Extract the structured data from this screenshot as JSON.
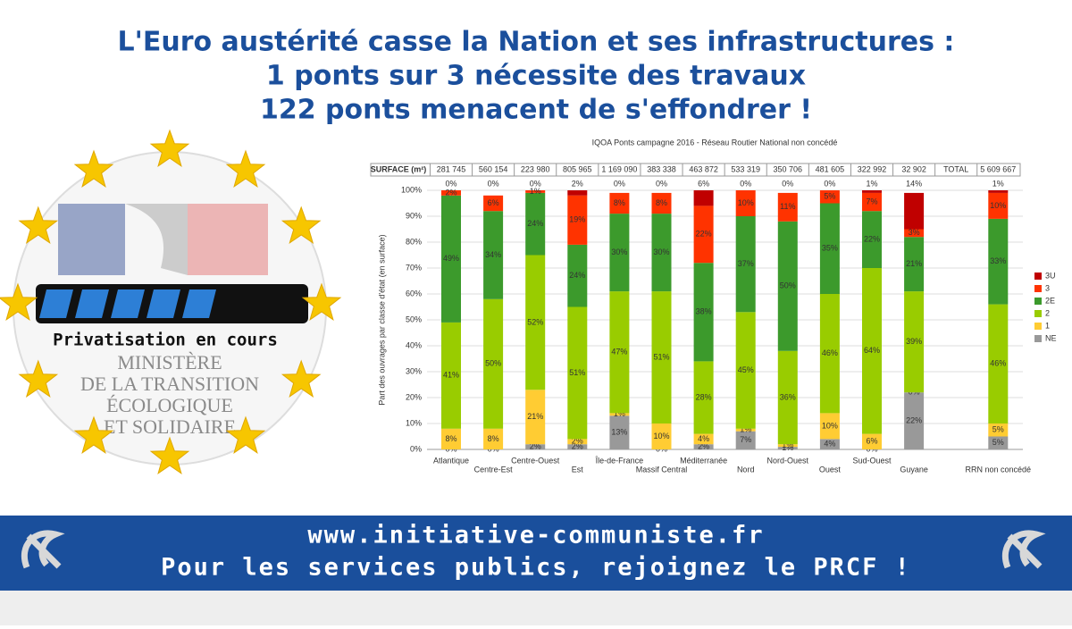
{
  "header": {
    "lines": [
      "L'Euro austérité casse la Nation et ses infrastructures :",
      "1 ponts sur 3 nécessite des travaux",
      "122 ponts menacent de s'effondrer !"
    ]
  },
  "logo": {
    "badge": "Privatisation en cours",
    "ministry": [
      "MINISTÈRE",
      "DE LA TRANSITION",
      "ÉCOLOGIQUE",
      "ET SOLIDAIRE"
    ]
  },
  "surface_table": {
    "header": "SURFACE (m²)",
    "cells": [
      "281 745",
      "560 154",
      "223 980",
      "805 965",
      "1 169 090",
      "383 338",
      "463 872",
      "533 319",
      "350 706",
      "481 605",
      "322 992",
      "32 902",
      "TOTAL",
      "5 609 667"
    ]
  },
  "chart_data": {
    "type": "stacked_bar",
    "title": "IQOA Ponts campagne 2016 - Réseau Routier National non concédé",
    "y_label": "Part des ouvrages par classe d'état (en surface)",
    "categories": [
      "Atlantique",
      "Centre-Est",
      "Centre-Ouest",
      "Est",
      "Île-de-France",
      "Massif Central",
      "Méditerranée",
      "Nord",
      "Nord-Ouest",
      "Ouest",
      "Sud-Ouest",
      "Guyane",
      null,
      "RRN non concédé"
    ],
    "ylim": [
      0,
      100
    ],
    "yticks": [
      {
        "value": 0,
        "label": "0%"
      },
      {
        "value": 10,
        "label": "10%"
      },
      {
        "value": 20,
        "label": "20%"
      },
      {
        "value": 30,
        "label": "30%"
      },
      {
        "value": 40,
        "label": "40%"
      },
      {
        "value": 50,
        "label": "50%"
      },
      {
        "value": 60,
        "label": "60%"
      },
      {
        "value": 70,
        "label": "70%"
      },
      {
        "value": 80,
        "label": "80%"
      },
      {
        "value": 90,
        "label": "90%"
      },
      {
        "value": 100,
        "label": "100%"
      }
    ],
    "grid": true,
    "legend": "right",
    "series": [
      {
        "name": "NE",
        "color": "#999999",
        "values": [
          0,
          0,
          2,
          2,
          13,
          0,
          2,
          7,
          1,
          4,
          0,
          22,
          null,
          5
        ],
        "value_labels": [
          "0%",
          "0%",
          "2%",
          "2%",
          "13%",
          "0%",
          "2%",
          "7%",
          "1%",
          "4%",
          "0%",
          "22%",
          null,
          "5%"
        ]
      },
      {
        "name": "1",
        "color": "#ffcc33",
        "values": [
          8,
          8,
          21,
          2,
          1,
          10,
          4,
          1,
          1,
          10,
          6,
          0,
          null,
          5
        ],
        "value_labels": [
          "8%",
          "8%",
          "21%",
          "2%",
          "1%",
          "10%",
          "4%",
          "1%",
          "1%",
          "10%",
          "6%",
          "0%",
          null,
          "5%"
        ]
      },
      {
        "name": "2",
        "color": "#99cc00",
        "values": [
          41,
          50,
          52,
          51,
          47,
          51,
          28,
          45,
          36,
          46,
          64,
          39,
          null,
          46
        ],
        "value_labels": [
          "41%",
          "50%",
          "52%",
          "51%",
          "47%",
          "51%",
          "28%",
          "45%",
          "36%",
          "46%",
          "64%",
          "39%",
          null,
          "46%"
        ]
      },
      {
        "name": "2E",
        "color": "#3c9a2c",
        "values": [
          49,
          34,
          24,
          24,
          30,
          30,
          38,
          37,
          50,
          35,
          22,
          21,
          null,
          33
        ],
        "value_labels": [
          "49%",
          "34%",
          "24%",
          "24%",
          "30%",
          "30%",
          "38%",
          "37%",
          "50%",
          "35%",
          "22%",
          "21%",
          null,
          "33%"
        ]
      },
      {
        "name": "3",
        "color": "#ff3300",
        "values": [
          2,
          6,
          1,
          19,
          8,
          8,
          22,
          10,
          11,
          5,
          7,
          3,
          null,
          10
        ],
        "value_labels": [
          "2%",
          "6%",
          "1%",
          "19%",
          "8%",
          "8%",
          "22%",
          "10%",
          "11%",
          "5%",
          "7%",
          "3%",
          null,
          "10%"
        ]
      },
      {
        "name": "3U",
        "color": "#c00000",
        "values": [
          0,
          0,
          0,
          2,
          0,
          0,
          6,
          0,
          0,
          0,
          1,
          14,
          null,
          1
        ],
        "value_labels": [
          "0%",
          "0%",
          "0%",
          "2%",
          "0%",
          "0%",
          "6%",
          "0%",
          "0%",
          "0%",
          "1%",
          "14%",
          null,
          "1%"
        ]
      }
    ]
  },
  "footer": {
    "lines": [
      "www.initiative-communiste.fr",
      "Pour les services publics, rejoignez le PRCF !"
    ]
  }
}
